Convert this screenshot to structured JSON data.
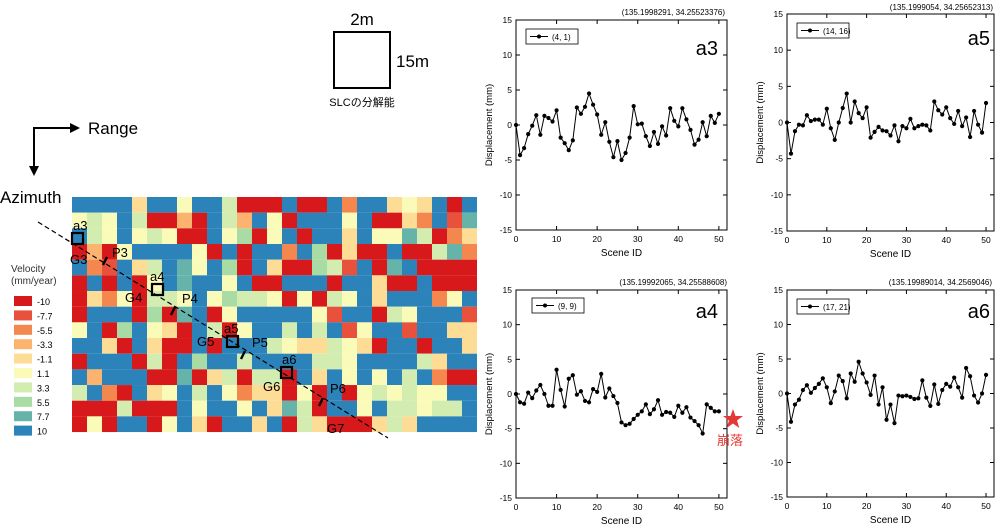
{
  "resolution": {
    "width_label": "2m",
    "height_label": "15m",
    "caption": "SLCの分解能"
  },
  "axes_arrows": {
    "range_label": "Range",
    "azimuth_label": "Azimuth"
  },
  "legend": {
    "title_line1": "Velocity",
    "title_line2": "(mm/year)",
    "entries": [
      {
        "label": "-10",
        "color": "#d7191c"
      },
      {
        "label": "-7.7",
        "color": "#e8513b"
      },
      {
        "label": "-5.5",
        "color": "#f4874e"
      },
      {
        "label": "-3.3",
        "color": "#fbb36f"
      },
      {
        "label": "-1.1",
        "color": "#fddc96"
      },
      {
        "label": "1.1",
        "color": "#fafbb9"
      },
      {
        "label": "3.3",
        "color": "#d3ecb0"
      },
      {
        "label": "5.5",
        "color": "#a9dba4"
      },
      {
        "label": "7.7",
        "color": "#66b4a9"
      },
      {
        "label": "10",
        "color": "#2b83ba"
      }
    ]
  },
  "map_labels": {
    "points": [
      "a3",
      "a4",
      "a5",
      "a6"
    ],
    "groups": [
      "G3",
      "G4",
      "G5",
      "G6",
      "G7"
    ],
    "profiles": [
      "P3",
      "P4",
      "P5",
      "P6"
    ]
  },
  "collapse_label": "崩落",
  "chart_data": [
    {
      "type": "line",
      "panel": "a3",
      "coord": "(135.1998291, 34.25523376)",
      "legend": "(4, 1)",
      "xlabel": "Scene ID",
      "ylabel": "Displacement (mm)",
      "xlim": [
        0,
        52
      ],
      "ylim": [
        -15,
        15
      ],
      "xticks": [
        0,
        10,
        20,
        30,
        40,
        50
      ],
      "yticks": [
        -15,
        -10,
        -5,
        0,
        5,
        10,
        15
      ],
      "values": [
        0,
        -4.3,
        -3.3,
        -1.3,
        -0.1,
        1.4,
        -1.4,
        1.3,
        1.0,
        0.5,
        2.1,
        -1.8,
        -2.6,
        -3.6,
        -2.2,
        2.5,
        1.6,
        2.6,
        4.5,
        2.9,
        1.5,
        -1.4,
        0.4,
        -2.4,
        -4.6,
        -2.3,
        -5.0,
        -4.0,
        -1.8,
        2.7,
        0.1,
        0.2,
        -1.6,
        -3.0,
        -1.0,
        -2.7,
        -0.2,
        -1.5,
        2.4,
        0.6,
        -0.2,
        2.4,
        0.8,
        -0.7,
        -2.8,
        -2.1,
        0.4,
        -1.6,
        1.3,
        0.3,
        1.6
      ]
    },
    {
      "type": "line",
      "panel": "a5",
      "coord": "(135.1999054, 34.25652313)",
      "legend": "(14, 16)",
      "xlabel": "Scene ID",
      "ylabel": "Displacement (mm)",
      "xlim": [
        0,
        52
      ],
      "ylim": [
        -15,
        15
      ],
      "xticks": [
        0,
        10,
        20,
        30,
        40,
        50
      ],
      "yticks": [
        -15,
        -10,
        -5,
        0,
        5,
        10,
        15
      ],
      "values": [
        0,
        -4.3,
        -1.2,
        -0.3,
        -0.4,
        1.0,
        0.2,
        0.4,
        0.4,
        -0.3,
        1.9,
        -0.8,
        -2.4,
        0.0,
        2.0,
        4.0,
        0.0,
        2.9,
        1.3,
        0.6,
        2.1,
        -2.1,
        -1.3,
        -0.6,
        -1.1,
        -1.2,
        -1.8,
        -0.4,
        -2.6,
        -0.5,
        -0.8,
        0.5,
        -0.8,
        -0.5,
        -0.3,
        -0.4,
        -1.1,
        2.9,
        1.7,
        1.1,
        2.1,
        0.6,
        -0.2,
        1.6,
        -0.5,
        0.7,
        -2.0,
        1.6,
        -0.3,
        -1.4,
        2.7
      ]
    },
    {
      "type": "line",
      "panel": "a4",
      "coord": "(135.19992065, 34.25588608)",
      "legend": "(9, 9)",
      "xlabel": "Scene ID",
      "ylabel": "Displacement (mm)",
      "xlim": [
        0,
        52
      ],
      "ylim": [
        -15,
        15
      ],
      "xticks": [
        0,
        10,
        20,
        30,
        40,
        50
      ],
      "yticks": [
        -15,
        -10,
        -5,
        0,
        5,
        10,
        15
      ],
      "values": [
        0,
        -1.2,
        -1.4,
        0.2,
        -0.6,
        0.5,
        1.3,
        0.0,
        -1.7,
        -1.7,
        3.5,
        0.6,
        -1.8,
        2.2,
        2.7,
        -0.1,
        0.4,
        -1.0,
        -1.2,
        0.7,
        0.3,
        2.9,
        -0.5,
        0.8,
        -0.3,
        -1.3,
        -4.1,
        -4.5,
        -4.3,
        -3.6,
        -3.0,
        -2.5,
        -1.5,
        -2.9,
        -2.2,
        -0.9,
        -3.0,
        -2.6,
        -2.7,
        -3.3,
        -1.7,
        -2.7,
        -1.9,
        -3.4,
        -3.9,
        -4.5,
        -5.7,
        -1.5,
        -2.0,
        -2.5,
        -2.5
      ]
    },
    {
      "type": "line",
      "panel": "a6",
      "coord": "(135.19989014, 34.2569046)",
      "legend": "(17, 21)",
      "xlabel": "Scene ID",
      "ylabel": "Displacement (mm)",
      "xlim": [
        0,
        52
      ],
      "ylim": [
        -15,
        15
      ],
      "xticks": [
        0,
        10,
        20,
        30,
        40,
        50
      ],
      "yticks": [
        -15,
        -10,
        -5,
        0,
        5,
        10,
        15
      ],
      "values": [
        0,
        -4.1,
        -1.6,
        -0.9,
        0.5,
        1.2,
        0.1,
        0.8,
        1.4,
        2.2,
        0.9,
        -1.4,
        0.3,
        2.6,
        1.8,
        -0.7,
        2.9,
        1.7,
        4.6,
        2.9,
        1.6,
        -0.2,
        2.6,
        -1.6,
        0.9,
        -3.8,
        -1.6,
        -4.3,
        -0.3,
        -0.4,
        -0.3,
        -0.5,
        -0.8,
        -0.7,
        1.9,
        -0.6,
        -1.8,
        1.3,
        -1.5,
        0.5,
        1.4,
        1.0,
        2.3,
        0.9,
        -0.6,
        3.7,
        2.5,
        -0.3,
        -1.3,
        0.0,
        2.7
      ]
    }
  ]
}
